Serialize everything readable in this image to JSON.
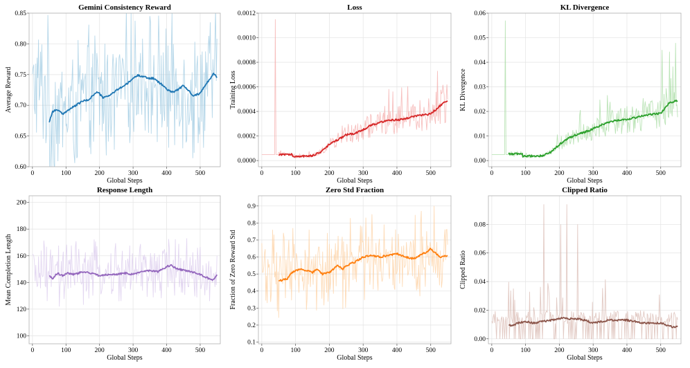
{
  "chart_data": [
    {
      "type": "line",
      "title": "Gemini Consistency Reward",
      "xlabel": "Global Steps",
      "ylabel": "Average Reward",
      "xlim": [
        -10,
        560
      ],
      "ylim": [
        0.6,
        0.85
      ],
      "xticks": [
        0,
        100,
        200,
        300,
        400,
        500
      ],
      "xtick_labels": [
        "0",
        "100",
        "200",
        "300",
        "400",
        "500"
      ],
      "yticks": [
        0.6,
        0.65,
        0.7,
        0.75,
        0.8,
        0.85
      ],
      "ytick_labels": [
        "0.60",
        "0.65",
        "0.70",
        "0.75",
        "0.80",
        "0.85"
      ],
      "grid": true,
      "colors": {
        "raw": "#9ecae1",
        "smooth": "#1f77b4"
      },
      "raw": {
        "x_start": 0,
        "x_end": 550,
        "base": 0.725,
        "amp": 0.085
      },
      "smoothed": {
        "name": "moving average",
        "x": [
          50,
          60,
          75,
          90,
          100,
          115,
          130,
          150,
          165,
          180,
          195,
          210,
          225,
          240,
          255,
          270,
          285,
          300,
          315,
          330,
          345,
          360,
          375,
          390,
          405,
          420,
          435,
          450,
          465,
          480,
          495,
          510,
          525,
          540,
          550
        ],
        "y": [
          0.673,
          0.69,
          0.693,
          0.685,
          0.69,
          0.695,
          0.7,
          0.707,
          0.708,
          0.716,
          0.722,
          0.712,
          0.715,
          0.72,
          0.726,
          0.731,
          0.736,
          0.744,
          0.749,
          0.747,
          0.744,
          0.744,
          0.738,
          0.732,
          0.724,
          0.722,
          0.726,
          0.732,
          0.724,
          0.716,
          0.718,
          0.728,
          0.74,
          0.752,
          0.746
        ]
      }
    },
    {
      "type": "line",
      "title": "Loss",
      "xlabel": "Global Steps",
      "ylabel": "Training Loss",
      "xlim": [
        -10,
        560
      ],
      "ylim": [
        -5e-05,
        0.0012
      ],
      "xticks": [
        0,
        100,
        200,
        300,
        400,
        500
      ],
      "xtick_labels": [
        "0",
        "100",
        "200",
        "300",
        "400",
        "500"
      ],
      "yticks": [
        0,
        0.0002,
        0.0004,
        0.0006,
        0.0008,
        0.001,
        0.0012
      ],
      "ytick_labels": [
        "0.0000",
        "0.0002",
        "0.0004",
        "0.0006",
        "0.0008",
        "0.0010",
        "0.0012"
      ],
      "grid": true,
      "colors": {
        "raw": "#f4a9a8",
        "smooth": "#d62728"
      },
      "raw": {
        "x_start": 0,
        "x_end": 550,
        "noise_frac": 0.35,
        "spikes": [
          {
            "x": 40,
            "y": 0.00115
          },
          {
            "x": 520,
            "y": 0.00073
          }
        ]
      },
      "smoothed": {
        "name": "moving average",
        "x": [
          50,
          90,
          91,
          150,
          175,
          200,
          225,
          250,
          275,
          300,
          325,
          350,
          375,
          400,
          425,
          450,
          475,
          500,
          525,
          550
        ],
        "y": [
          5e-05,
          5e-05,
          3e-05,
          4e-05,
          7e-05,
          0.00013,
          0.00017,
          0.00021,
          0.00022,
          0.00025,
          0.00029,
          0.00031,
          0.00033,
          0.00033,
          0.00034,
          0.00036,
          0.00037,
          0.00038,
          0.00044,
          0.00049
        ]
      }
    },
    {
      "type": "line",
      "title": "KL Divergence",
      "xlabel": "Global Steps",
      "ylabel": "KL Divergence",
      "xlim": [
        -10,
        560
      ],
      "ylim": [
        -0.0025,
        0.06
      ],
      "xticks": [
        0,
        100,
        200,
        300,
        400,
        500
      ],
      "xtick_labels": [
        "0",
        "100",
        "200",
        "300",
        "400",
        "500"
      ],
      "yticks": [
        0,
        0.01,
        0.02,
        0.03,
        0.04,
        0.05,
        0.06
      ],
      "ytick_labels": [
        "0.00",
        "0.01",
        "0.02",
        "0.03",
        "0.04",
        "0.05",
        "0.06"
      ],
      "grid": true,
      "colors": {
        "raw": "#a6dba0",
        "smooth": "#2ca02c"
      },
      "raw": {
        "x_start": 0,
        "x_end": 550,
        "noise_frac": 0.35,
        "spikes": [
          {
            "x": 40,
            "y": 0.057
          },
          {
            "x": 505,
            "y": 0.045
          }
        ]
      },
      "smoothed": {
        "name": "moving average",
        "x": [
          50,
          90,
          91,
          150,
          175,
          200,
          225,
          250,
          275,
          300,
          325,
          350,
          375,
          400,
          425,
          450,
          475,
          500,
          525,
          550
        ],
        "y": [
          0.0027,
          0.0027,
          0.0017,
          0.002,
          0.0035,
          0.0065,
          0.009,
          0.0105,
          0.0115,
          0.013,
          0.0145,
          0.0158,
          0.0165,
          0.0168,
          0.0175,
          0.0183,
          0.0188,
          0.0192,
          0.0235,
          0.0244
        ]
      }
    },
    {
      "type": "line",
      "title": "Response Length",
      "xlabel": "Global Steps",
      "ylabel": "Mean Completion Length",
      "xlim": [
        -10,
        560
      ],
      "ylim": [
        94,
        205
      ],
      "xticks": [
        0,
        100,
        200,
        300,
        400,
        500
      ],
      "xtick_labels": [
        "0",
        "100",
        "200",
        "300",
        "400",
        "500"
      ],
      "yticks": [
        100,
        120,
        140,
        160,
        180,
        200
      ],
      "ytick_labels": [
        "100",
        "120",
        "140",
        "160",
        "180",
        "200"
      ],
      "grid": true,
      "colors": {
        "raw": "#d9c9ec",
        "smooth": "#9467bd"
      },
      "raw": {
        "x_start": 0,
        "x_end": 550,
        "base": 147,
        "amp": 20
      },
      "smoothed": {
        "name": "moving average",
        "x": [
          50,
          60,
          75,
          90,
          100,
          125,
          150,
          175,
          200,
          225,
          250,
          275,
          300,
          325,
          350,
          375,
          400,
          415,
          425,
          450,
          475,
          500,
          525,
          540,
          550
        ],
        "y": [
          145,
          143,
          147,
          145,
          147,
          146,
          148,
          147,
          145,
          146,
          146,
          147,
          146,
          148,
          149,
          148,
          152,
          153,
          151,
          149,
          148,
          146,
          143,
          142,
          146
        ]
      }
    },
    {
      "type": "line",
      "title": "Zero Std Fraction",
      "xlabel": "Global Steps",
      "ylabel": "Fraction of Zero Reward Std",
      "xlim": [
        -10,
        560
      ],
      "ylim": [
        0.09,
        0.96
      ],
      "xticks": [
        0,
        100,
        200,
        300,
        400,
        500
      ],
      "xtick_labels": [
        "0",
        "100",
        "200",
        "300",
        "400",
        "500"
      ],
      "yticks": [
        0.1,
        0.2,
        0.3,
        0.4,
        0.5,
        0.6,
        0.7,
        0.8,
        0.9
      ],
      "ytick_labels": [
        "0.1",
        "0.2",
        "0.3",
        "0.4",
        "0.5",
        "0.6",
        "0.7",
        "0.8",
        "0.9"
      ],
      "grid": true,
      "colors": {
        "raw": "#fdd0a2",
        "smooth": "#ff7f0e"
      },
      "raw": {
        "x_start": 0,
        "x_end": 550,
        "base": 0.55,
        "amp": 0.2
      },
      "smoothed": {
        "name": "moving average",
        "x": [
          50,
          75,
          90,
          100,
          115,
          130,
          150,
          165,
          180,
          200,
          225,
          240,
          250,
          275,
          300,
          325,
          350,
          375,
          400,
          425,
          450,
          475,
          490,
          500,
          515,
          530,
          550
        ],
        "y": [
          0.46,
          0.47,
          0.51,
          0.52,
          0.53,
          0.52,
          0.51,
          0.53,
          0.5,
          0.51,
          0.55,
          0.53,
          0.55,
          0.57,
          0.6,
          0.61,
          0.6,
          0.61,
          0.62,
          0.6,
          0.59,
          0.62,
          0.63,
          0.65,
          0.62,
          0.6,
          0.61
        ]
      }
    },
    {
      "type": "line",
      "title": "Clipped Ratio",
      "xlabel": "Global Steps",
      "ylabel": "Clipped Ratio",
      "xlim": [
        -10,
        560
      ],
      "ylim": [
        -0.0035,
        0.1
      ],
      "xticks": [
        0,
        100,
        200,
        300,
        400,
        500
      ],
      "xtick_labels": [
        "0",
        "100",
        "200",
        "300",
        "400",
        "500"
      ],
      "yticks": [
        0,
        0.02,
        0.04,
        0.06,
        0.08
      ],
      "ytick_labels": [
        "0.00",
        "0.02",
        "0.04",
        "0.06",
        "0.08"
      ],
      "grid": true,
      "colors": {
        "raw": "#d8b8b0",
        "smooth": "#8c564b"
      },
      "raw": {
        "x_start": 0,
        "x_end": 550,
        "base": 0.015,
        "spikes": [
          {
            "x": 155,
            "y": 0.094
          },
          {
            "x": 222,
            "y": 0.094
          },
          {
            "x": 255,
            "y": 0.08
          },
          {
            "x": 205,
            "y": 0.08
          }
        ]
      },
      "smoothed": {
        "name": "moving average",
        "x": [
          50,
          60,
          75,
          100,
          125,
          150,
          175,
          200,
          215,
          225,
          250,
          275,
          300,
          325,
          350,
          375,
          400,
          425,
          450,
          475,
          500,
          525,
          540,
          550
        ],
        "y": [
          0.01,
          0.009,
          0.011,
          0.012,
          0.011,
          0.012,
          0.013,
          0.014,
          0.015,
          0.014,
          0.014,
          0.013,
          0.011,
          0.012,
          0.013,
          0.013,
          0.013,
          0.012,
          0.011,
          0.011,
          0.011,
          0.009,
          0.008,
          0.009
        ]
      }
    }
  ]
}
